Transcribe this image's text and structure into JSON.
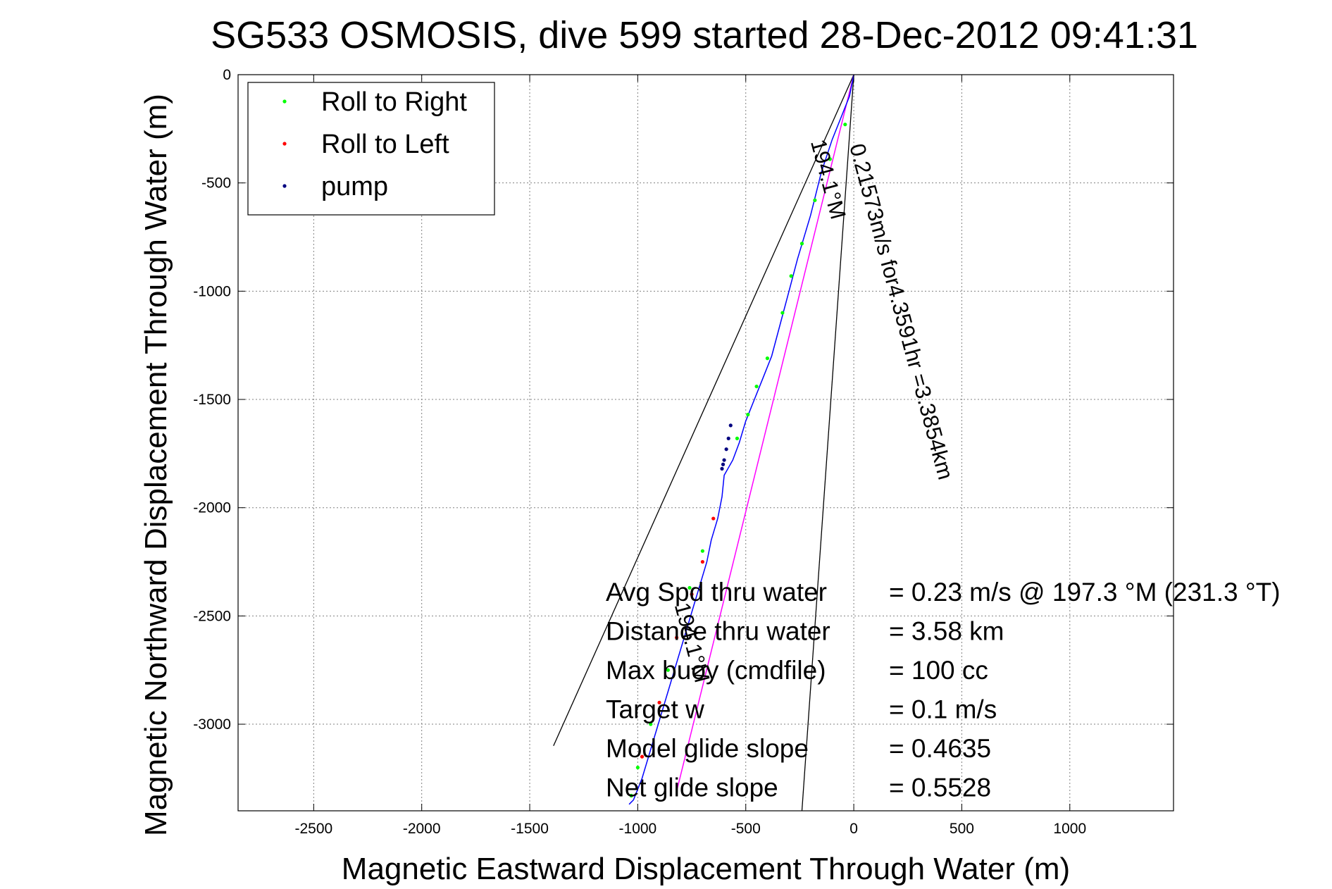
{
  "chart_data": {
    "type": "line",
    "title": "SG533 OSMOSIS, dive 599 started 28-Dec-2012 09:41:31",
    "xlabel": "Magnetic Eastward Displacement Through Water (m)",
    "ylabel": "Magnetic Northward Displacement Through Water (m)",
    "xlim": [
      -2850,
      1480
    ],
    "ylim": [
      -3400,
      0
    ],
    "x_ticks": [
      -2500,
      -2000,
      -1500,
      -1000,
      -500,
      0,
      500,
      1000
    ],
    "y_ticks": [
      0,
      -500,
      -1000,
      -1500,
      -2000,
      -2500,
      -3000
    ],
    "grid": true,
    "legend": {
      "placement": "top-left",
      "entries": [
        {
          "name": "Roll to Right",
          "color": "#00ff00"
        },
        {
          "name": "Roll to Left",
          "color": "#ff0000"
        },
        {
          "name": "pump",
          "color": "#000080"
        }
      ]
    },
    "track": {
      "color": "#0000ff",
      "x": [
        0,
        -20,
        -60,
        -100,
        -150,
        -200,
        -260,
        -300,
        -340,
        -380,
        -420,
        -460,
        -500,
        -530,
        -560,
        -600,
        -610,
        -630,
        -660,
        -680,
        -710,
        -740,
        -770,
        -800,
        -830,
        -860,
        -890,
        -920,
        -950,
        -980,
        -1000,
        -1020,
        -1040
      ],
      "y": [
        0,
        -100,
        -200,
        -300,
        -450,
        -650,
        -850,
        -1000,
        -1150,
        -1300,
        -1400,
        -1500,
        -1600,
        -1700,
        -1780,
        -1850,
        -1950,
        -2050,
        -2150,
        -2250,
        -2350,
        -2450,
        -2550,
        -2650,
        -2750,
        -2850,
        -2950,
        -3050,
        -3150,
        -3250,
        -3300,
        -3350,
        -3370
      ]
    },
    "roll_right": {
      "x": [
        -40,
        -110,
        -180,
        -240,
        -290,
        -330,
        -400,
        -450,
        -490,
        -540,
        -700,
        -760,
        -860,
        -940,
        -1000,
        -1030
      ],
      "y": [
        -230,
        -390,
        -580,
        -780,
        -930,
        -1100,
        -1310,
        -1440,
        -1570,
        -1680,
        -2200,
        -2370,
        -2750,
        -3000,
        -3200,
        -3330
      ]
    },
    "roll_left": {
      "x": [
        -650,
        -700,
        -750,
        -820,
        -900,
        -980
      ],
      "y": [
        -2050,
        -2250,
        -2400,
        -2600,
        -2900,
        -3150
      ]
    },
    "pump": {
      "x": [
        -570,
        -580,
        -590,
        -600,
        -605,
        -610
      ],
      "y": [
        -1620,
        -1680,
        -1730,
        -1780,
        -1800,
        -1820
      ]
    },
    "avg_vector": {
      "color": "#ff00ff",
      "x": [
        0,
        -820
      ],
      "y": [
        0,
        -3310
      ]
    },
    "cone_lines": [
      {
        "color": "#000000",
        "x": [
          0,
          -1390
        ],
        "y": [
          0,
          -3100
        ]
      },
      {
        "color": "#000000",
        "x": [
          0,
          -240
        ],
        "y": [
          0,
          -3400
        ]
      }
    ],
    "annotations": [
      {
        "text": "0.21573m/s for4.3591hr =3.3854km",
        "x": -20,
        "y": -330,
        "angle": 75
      },
      {
        "text": "194.1°M",
        "x": -200,
        "y": -310,
        "angle": 75
      },
      {
        "text": "194.1°M",
        "x": -830,
        "y": -2450,
        "angle": 75
      }
    ],
    "info_box": [
      {
        "label": "Avg Spd thru water",
        "value": "=  0.23 m/s @ 197.3 °M (231.3 °T)"
      },
      {
        "label": "Distance thru water",
        "value": "=  3.58 km"
      },
      {
        "label": "Max buoy (cmdfile)",
        "value": "= 100 cc"
      },
      {
        "label": "Target w",
        "value": "= 0.1 m/s"
      },
      {
        "label": "Model glide slope",
        "value": "= 0.4635"
      },
      {
        "label": "Net glide slope",
        "value": "= 0.5528"
      }
    ]
  }
}
